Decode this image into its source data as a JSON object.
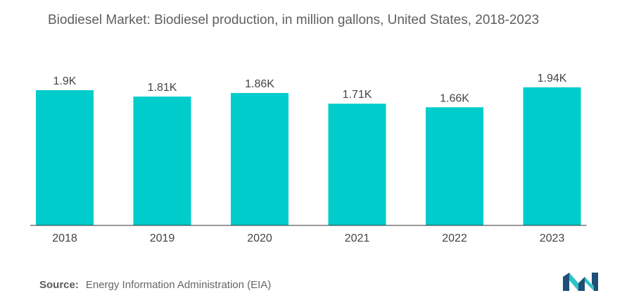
{
  "title": "Biodiesel Market: Biodiesel production, in million gallons, United States, 2018-2023",
  "source": {
    "label": "Source:",
    "text": "Energy Information Administration (EIA)"
  },
  "logo_icon": "mordor-intelligence-logo-icon",
  "colors": {
    "bar": "#00cccc",
    "axis": "#333333",
    "logo_dark": "#1f4e79",
    "logo_light": "#2ec4c4"
  },
  "chart_data": {
    "type": "bar",
    "title": "Biodiesel Market: Biodiesel production, in million gallons, United States, 2018-2023",
    "xlabel": "",
    "ylabel": "",
    "categories": [
      "2018",
      "2019",
      "2020",
      "2021",
      "2022",
      "2023"
    ],
    "values": [
      1900,
      1810,
      1860,
      1710,
      1660,
      1940
    ],
    "data_labels": [
      "1.9K",
      "1.81K",
      "1.86K",
      "1.71K",
      "1.66K",
      "1.94K"
    ],
    "ylim": [
      0,
      1940
    ],
    "grid": false,
    "legend": "none"
  }
}
